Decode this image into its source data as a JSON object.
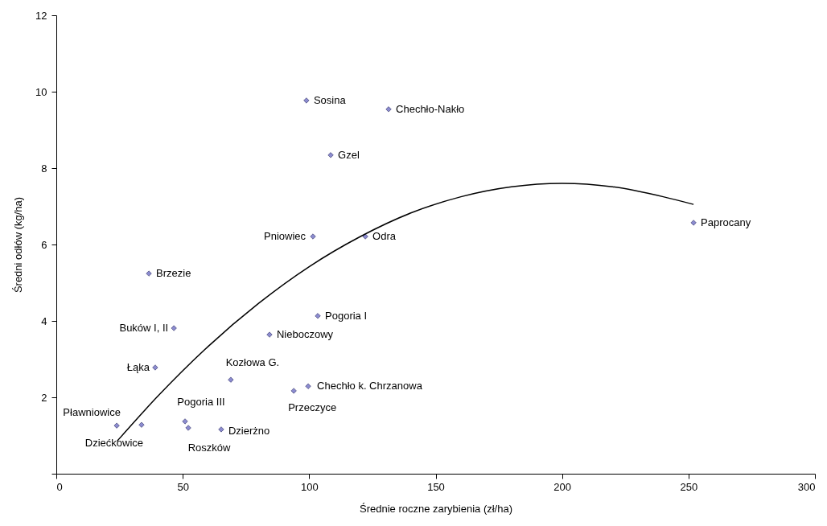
{
  "chart_data": {
    "type": "scatter",
    "xlabel": "Średnie roczne zarybienia (zł/ha)",
    "ylabel": "Średni odłów (kg/ha)",
    "xlim": [
      0,
      300
    ],
    "xticks": [
      0,
      50,
      100,
      150,
      200,
      250,
      300
    ],
    "ylim": [
      0,
      12
    ],
    "yticks": [
      {
        "value": 0,
        "label": null
      },
      2,
      4,
      6,
      8,
      10,
      12
    ],
    "grid": false,
    "marker": "diamond",
    "series": [
      {
        "color": "#8c8cd0",
        "x": [
          98.9,
          131.4,
          108.5,
          101.5,
          122.2,
          252,
          36.6,
          103.4,
          46.5,
          84.3,
          39.1,
          69.0,
          99.6,
          93.9,
          23.9,
          33.7,
          50.9,
          52.2,
          65.2
        ],
        "values": [
          9.77,
          9.54,
          8.34,
          6.21,
          6.21,
          6.57,
          5.24,
          4.13,
          3.81,
          3.64,
          2.78,
          2.46,
          2.29,
          2.17,
          1.26,
          1.28,
          1.37,
          1.2,
          1.16
        ]
      },
      {
        "type": "line",
        "color": "#000000",
        "line_style": "solid",
        "marker": "none",
        "x": [
          24,
          40,
          60,
          80,
          100,
          120,
          140,
          160,
          180,
          200,
          220,
          240,
          252
        ],
        "values": [
          0.85,
          2.02,
          3.33,
          4.46,
          5.42,
          6.2,
          6.82,
          7.25,
          7.51,
          7.6,
          7.51,
          7.25,
          7.05
        ]
      }
    ],
    "annotations": [
      {
        "text": "Sosina",
        "x": 98.9,
        "y": 9.77
      },
      {
        "text": "Chechło-Nakło",
        "x": 131.4,
        "y": 9.54
      },
      {
        "text": "Gzel",
        "x": 108.5,
        "y": 8.34
      },
      {
        "text": "Pniowiec",
        "x": 101.5,
        "y": 6.21
      },
      {
        "text": "Odra",
        "x": 122.2,
        "y": 6.21
      },
      {
        "text": "Paprocany",
        "x": 252,
        "y": 6.57
      },
      {
        "text": "Brzezie",
        "x": 36.6,
        "y": 5.24
      },
      {
        "text": "Pogoria I",
        "x": 103.4,
        "y": 4.13
      },
      {
        "text": "Buków I, II",
        "x": 46.5,
        "y": 3.81
      },
      {
        "text": "Nieboczowy",
        "x": 84.3,
        "y": 3.64
      },
      {
        "text": "Łąka",
        "x": 39.1,
        "y": 2.78
      },
      {
        "text": "Kozłowa G.",
        "x": 69.0,
        "y": 2.46
      },
      {
        "text": "Chechło k. Chrzanowa",
        "x": 99.6,
        "y": 2.29
      },
      {
        "text": "Przeczyce",
        "x": 93.9,
        "y": 2.17
      },
      {
        "text": "Pławniowice",
        "x": 23.9,
        "y": 1.26
      },
      {
        "text": "Dziećkowice",
        "x": 33.7,
        "y": 1.28
      },
      {
        "text": "Pogoria III",
        "x": 50.9,
        "y": 1.37
      },
      {
        "text": "Roszków",
        "x": 52.2,
        "y": 1.2
      },
      {
        "text": "Dzierżno",
        "x": 65.2,
        "y": 1.16
      }
    ]
  }
}
